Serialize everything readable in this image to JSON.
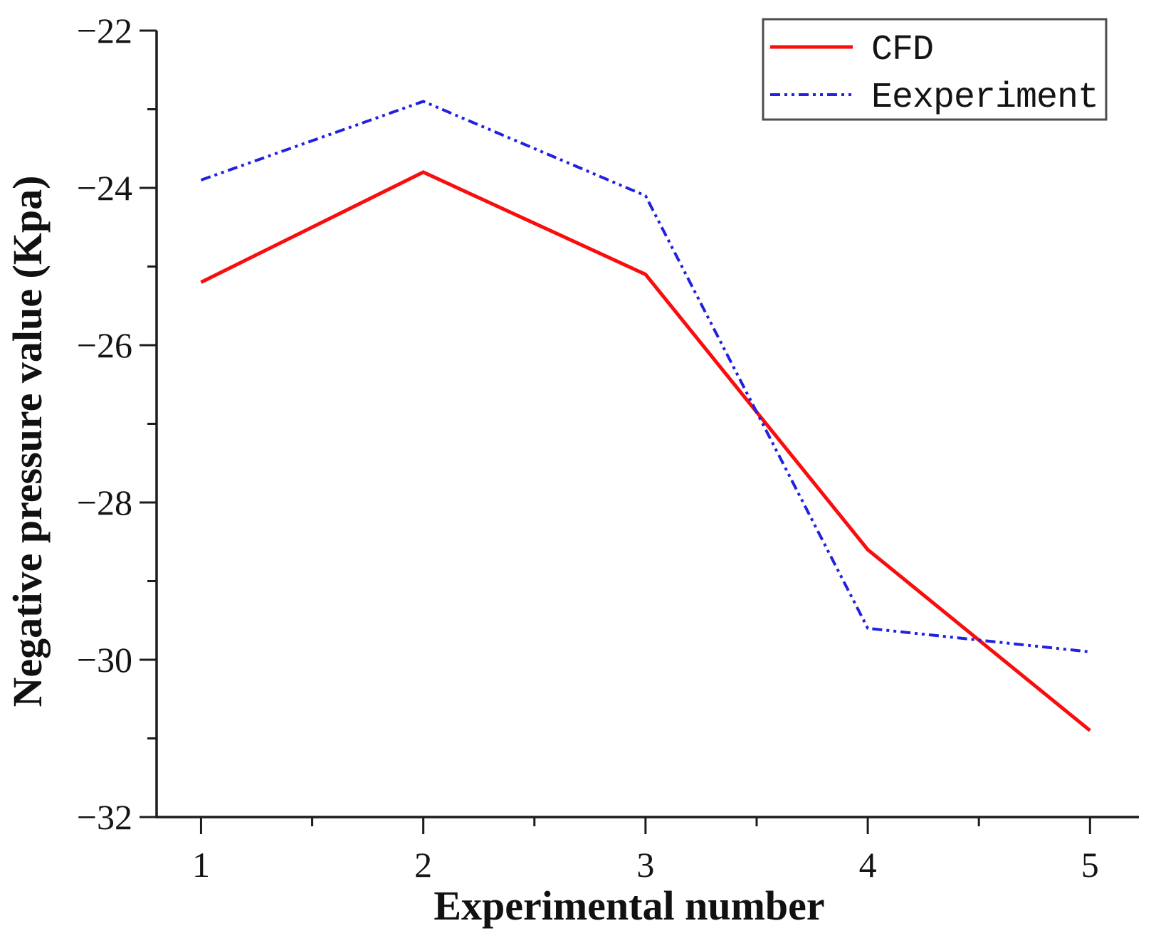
{
  "chart_data": {
    "type": "line",
    "title": "",
    "xlabel": "Experimental number",
    "ylabel": "Negative pressure value (Kpa)",
    "x": [
      1,
      2,
      3,
      4,
      5
    ],
    "xlim": [
      0.8,
      5.22
    ],
    "ylim": [
      -32,
      -22
    ],
    "x_major_ticks": [
      1,
      2,
      3,
      4,
      5
    ],
    "x_minor_ticks": [
      1.5,
      2.5,
      3.5,
      4.5
    ],
    "y_major_ticks": [
      -22,
      -24,
      -26,
      -28,
      -30,
      -32
    ],
    "y_minor_ticks": [
      -23,
      -25,
      -27,
      -29,
      -31
    ],
    "grid": false,
    "legend_position": "top-right",
    "series": [
      {
        "name": "CFD",
        "color": "#f90d0d",
        "line_style": "solid",
        "values": [
          -25.2,
          -23.8,
          -25.1,
          -28.6,
          -30.9
        ]
      },
      {
        "name": "Eexperiment",
        "color": "#2121de",
        "line_style": "dash-dot-dot",
        "values": [
          -23.9,
          -22.9,
          -24.1,
          -29.6,
          -29.9
        ]
      }
    ]
  },
  "colors": {
    "axis": "#1c1c1c",
    "background": "#ffffff",
    "legend_border": "#4d4d4d"
  }
}
